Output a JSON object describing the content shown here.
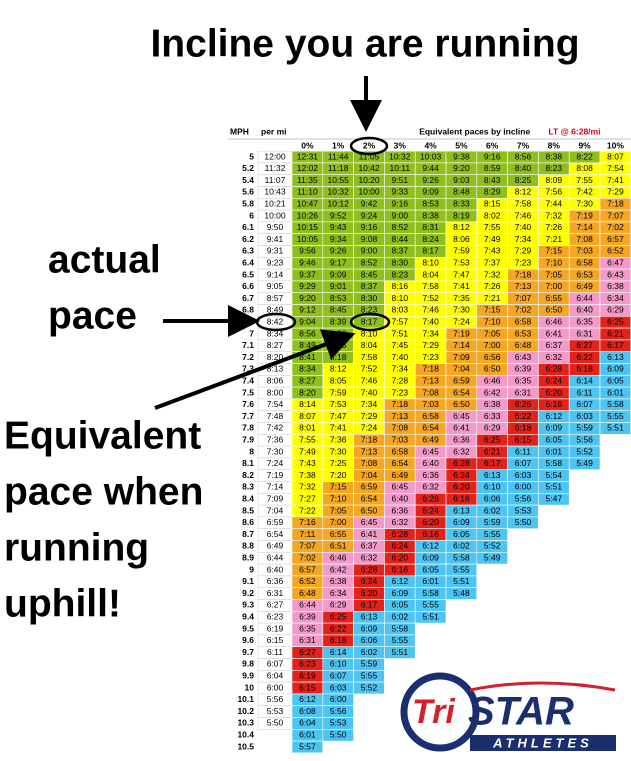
{
  "annotations": {
    "incline": "Incline you are running",
    "actual_pace": [
      "actual",
      "pace"
    ],
    "equivalent": [
      "Equivalent",
      "pace when",
      "running",
      "uphill!"
    ]
  },
  "table": {
    "headers": {
      "mph": "MPH",
      "per_mi": "per mi",
      "caption": "Equivalent paces by incline",
      "lt": "LT @ 6:28/mi",
      "inclines": [
        "0%",
        "1%",
        "2%",
        "3%",
        "4%",
        "5%",
        "6%",
        "7%",
        "8%",
        "9%",
        "10%"
      ]
    },
    "pace_colors": [
      {
        "min_seconds": 497,
        "color": "#8fbf1c"
      },
      {
        "min_seconds": 440,
        "color": "#ffff00"
      },
      {
        "min_seconds": 408,
        "color": "#f5a623"
      },
      {
        "min_seconds": 389,
        "color": "#f49ac8"
      },
      {
        "min_seconds": 375,
        "color": "#e3221c"
      },
      {
        "min_seconds": 0,
        "color": "#4dc4f2"
      }
    ],
    "rows": [
      {
        "mph": "5",
        "per_mi": "12:00",
        "paces": [
          "12:31",
          "11:44",
          "11:05",
          "10:32",
          "10:03",
          "9:38",
          "9:16",
          "8:56",
          "8:38",
          "8:22",
          "8:07"
        ]
      },
      {
        "mph": "5.2",
        "per_mi": "11:32",
        "paces": [
          "12:02",
          "11:18",
          "10:42",
          "10:11",
          "9:44",
          "9:20",
          "8:59",
          "8:40",
          "8:23",
          "8:08",
          "7:54"
        ]
      },
      {
        "mph": "5.4",
        "per_mi": "11:07",
        "paces": [
          "11:35",
          "10:55",
          "10:20",
          "9:51",
          "9:26",
          "9:03",
          "8:43",
          "8:25",
          "8:09",
          "7:55",
          "7:41"
        ]
      },
      {
        "mph": "5.6",
        "per_mi": "10:43",
        "paces": [
          "11:10",
          "10:32",
          "10:00",
          "9:33",
          "9:09",
          "8:48",
          "8:29",
          "8:12",
          "7:56",
          "7:42",
          "7:29"
        ]
      },
      {
        "mph": "5.8",
        "per_mi": "10:21",
        "paces": [
          "10:47",
          "10:12",
          "9:42",
          "9:16",
          "8:53",
          "8:33",
          "8:15",
          "7:58",
          "7:44",
          "7:30",
          "7:18"
        ]
      },
      {
        "mph": "6",
        "per_mi": "10:00",
        "paces": [
          "10:26",
          "9:52",
          "9:24",
          "9:00",
          "8:38",
          "8:19",
          "8:02",
          "7:46",
          "7:32",
          "7:19",
          "7:07"
        ]
      },
      {
        "mph": "6.1",
        "per_mi": "9:50",
        "paces": [
          "10:15",
          "9:43",
          "9:16",
          "8:52",
          "8:31",
          "8:12",
          "7:55",
          "7:40",
          "7:26",
          "7:14",
          "7:02"
        ]
      },
      {
        "mph": "6.2",
        "per_mi": "9:41",
        "paces": [
          "10:05",
          "9:34",
          "9:08",
          "8:44",
          "8:24",
          "8:06",
          "7:49",
          "7:34",
          "7:21",
          "7:08",
          "6:57"
        ]
      },
      {
        "mph": "6.3",
        "per_mi": "9:31",
        "paces": [
          "9:56",
          "9:26",
          "9:00",
          "8:37",
          "8:17",
          "7:59",
          "7:43",
          "7:29",
          "7:15",
          "7:03",
          "6:52"
        ]
      },
      {
        "mph": "6.4",
        "per_mi": "9:23",
        "paces": [
          "9:46",
          "9:17",
          "8:52",
          "8:30",
          "8:10",
          "7:53",
          "7:37",
          "7:23",
          "7:10",
          "6:58",
          "6:47"
        ]
      },
      {
        "mph": "6.5",
        "per_mi": "9:14",
        "paces": [
          "9:37",
          "9:09",
          "8:45",
          "8:23",
          "8:04",
          "7:47",
          "7:32",
          "7:18",
          "7:05",
          "6:53",
          "6:43"
        ]
      },
      {
        "mph": "6.6",
        "per_mi": "9:05",
        "paces": [
          "9:29",
          "9:01",
          "8:37",
          "8:16",
          "7:58",
          "7:41",
          "7:26",
          "7:13",
          "7:00",
          "6:49",
          "6:38"
        ]
      },
      {
        "mph": "6.7",
        "per_mi": "8:57",
        "paces": [
          "9:20",
          "8:53",
          "8:30",
          "8:10",
          "7:52",
          "7:35",
          "7:21",
          "7:07",
          "6:55",
          "6:44",
          "6:34"
        ]
      },
      {
        "mph": "6.8",
        "per_mi": "8:49",
        "paces": [
          "9:12",
          "8:45",
          "8:23",
          "8:03",
          "7:46",
          "7:30",
          "7:15",
          "7:02",
          "6:50",
          "6:40",
          "6:29"
        ]
      },
      {
        "mph": "6.9",
        "per_mi": "8:42",
        "paces": [
          "9:04",
          "8:39",
          "8:17",
          "7:57",
          "7:40",
          "7:24",
          "7:10",
          "6:58",
          "6:46",
          "6:35",
          "6:25"
        ]
      },
      {
        "mph": "7",
        "per_mi": "8:34",
        "paces": [
          "8:56",
          "8:32",
          "8:10",
          "7:51",
          "7:34",
          "7:19",
          "7:05",
          "6:53",
          "6:41",
          "6:31",
          "6:21"
        ]
      },
      {
        "mph": "7.1",
        "per_mi": "8:27",
        "paces": [
          "8:49",
          "8:25",
          "8:04",
          "7:45",
          "7:29",
          "7:14",
          "7:00",
          "6:48",
          "6:37",
          "6:27",
          "6:17"
        ]
      },
      {
        "mph": "7.2",
        "per_mi": "8:20",
        "paces": [
          "8:41",
          "8:18",
          "7:58",
          "7:40",
          "7:23",
          "7:09",
          "6:56",
          "6:43",
          "6:32",
          "6:22",
          "6:13"
        ]
      },
      {
        "mph": "7.3",
        "per_mi": "8:13",
        "paces": [
          "8:34",
          "8:12",
          "7:52",
          "7:34",
          "7:18",
          "7:04",
          "6:50",
          "6:39",
          "6:28",
          "6:18",
          "6:09"
        ]
      },
      {
        "mph": "7.4",
        "per_mi": "8:06",
        "paces": [
          "8:27",
          "8:05",
          "7:46",
          "7:28",
          "7:13",
          "6:59",
          "6:46",
          "6:35",
          "6:24",
          "6:14",
          "6:05"
        ]
      },
      {
        "mph": "7.5",
        "per_mi": "8:00",
        "paces": [
          "8:20",
          "7:59",
          "7:40",
          "7:23",
          "7:08",
          "6:54",
          "6:42",
          "6:31",
          "6:20",
          "6:11",
          "6:01"
        ]
      },
      {
        "mph": "7.6",
        "per_mi": "7:54",
        "paces": [
          "8:14",
          "7:53",
          "7:34",
          "7:18",
          "7:03",
          "6:50",
          "6:38",
          "6:26",
          "6:16",
          "6:07",
          "5:58"
        ]
      },
      {
        "mph": "7.7",
        "per_mi": "7:48",
        "paces": [
          "8:07",
          "7:47",
          "7:29",
          "7:13",
          "6:58",
          "6:45",
          "6:33",
          "6:22",
          "6:12",
          "6:03",
          "5:55"
        ]
      },
      {
        "mph": "7.8",
        "per_mi": "7:42",
        "paces": [
          "8:01",
          "7:41",
          "7:24",
          "7:08",
          "6:54",
          "6:41",
          "6:29",
          "6:18",
          "6:09",
          "5:59",
          "5:51"
        ]
      },
      {
        "mph": "7.9",
        "per_mi": "7:36",
        "paces": [
          "7:55",
          "7:36",
          "7:18",
          "7:03",
          "6:49",
          "6:36",
          "6:25",
          "6:15",
          "6:05",
          "5:56"
        ]
      },
      {
        "mph": "8",
        "per_mi": "7:30",
        "paces": [
          "7:49",
          "7:30",
          "7:13",
          "6:58",
          "6:45",
          "6:32",
          "6:21",
          "6:11",
          "6:01",
          "5:52"
        ]
      },
      {
        "mph": "8.1",
        "per_mi": "7:24",
        "paces": [
          "7:43",
          "7:25",
          "7:08",
          "6:54",
          "6:40",
          "6:28",
          "6:17",
          "6:07",
          "5:58",
          "5:49"
        ]
      },
      {
        "mph": "8.2",
        "per_mi": "7:19",
        "paces": [
          "7:38",
          "7:20",
          "7:04",
          "6:49",
          "6:36",
          "6:24",
          "6:13",
          "6:03",
          "5:54"
        ]
      },
      {
        "mph": "8.3",
        "per_mi": "7:14",
        "paces": [
          "7:32",
          "7:15",
          "6:59",
          "6:45",
          "6:32",
          "6:20",
          "6:10",
          "6:00",
          "5:51"
        ]
      },
      {
        "mph": "8.4",
        "per_mi": "7:09",
        "paces": [
          "7:27",
          "7:10",
          "6:54",
          "6:40",
          "6:28",
          "6:16",
          "6:06",
          "5:56",
          "5:47"
        ]
      },
      {
        "mph": "8.5",
        "per_mi": "7:04",
        "paces": [
          "7:22",
          "7:05",
          "6:50",
          "6:36",
          "6:24",
          "6:13",
          "6:02",
          "5:53"
        ]
      },
      {
        "mph": "8.6",
        "per_mi": "6:59",
        "paces": [
          "7:16",
          "7:00",
          "6:45",
          "6:32",
          "6:20",
          "6:09",
          "5:59",
          "5:50"
        ]
      },
      {
        "mph": "8.7",
        "per_mi": "6:54",
        "paces": [
          "7:11",
          "6:55",
          "6:41",
          "6:28",
          "6:16",
          "6:05",
          "5:55"
        ]
      },
      {
        "mph": "8.8",
        "per_mi": "6:49",
        "paces": [
          "7:07",
          "6:51",
          "6:37",
          "6:24",
          "6:12",
          "6:02",
          "5:52"
        ]
      },
      {
        "mph": "8.9",
        "per_mi": "6:44",
        "paces": [
          "7:02",
          "6:46",
          "6:32",
          "6:20",
          "6:09",
          "5:58",
          "5:49"
        ]
      },
      {
        "mph": "9",
        "per_mi": "6:40",
        "paces": [
          "6:57",
          "6:42",
          "6:28",
          "6:16",
          "6:05",
          "5:55"
        ]
      },
      {
        "mph": "9.1",
        "per_mi": "6:36",
        "paces": [
          "6:52",
          "6:38",
          "6:24",
          "6:12",
          "6:01",
          "5:51"
        ]
      },
      {
        "mph": "9.2",
        "per_mi": "6:31",
        "paces": [
          "6:48",
          "6:34",
          "6:20",
          "6:09",
          "5:58",
          "5:48"
        ]
      },
      {
        "mph": "9.3",
        "per_mi": "6:27",
        "paces": [
          "6:44",
          "6:29",
          "6:17",
          "6:05",
          "5:55"
        ]
      },
      {
        "mph": "9.4",
        "per_mi": "6:23",
        "paces": [
          "6:39",
          "6:25",
          "6:13",
          "6:02",
          "5:51"
        ]
      },
      {
        "mph": "9.5",
        "per_mi": "6:19",
        "paces": [
          "6:35",
          "6:22",
          "6:09",
          "5:58"
        ]
      },
      {
        "mph": "9.6",
        "per_mi": "6:15",
        "paces": [
          "6:31",
          "6:18",
          "6:06",
          "5:55"
        ]
      },
      {
        "mph": "9.7",
        "per_mi": "6:11",
        "paces": [
          "6:27",
          "6:14",
          "6:02",
          "5:51"
        ]
      },
      {
        "mph": "9.8",
        "per_mi": "6:07",
        "paces": [
          "6:23",
          "6:10",
          "5:59"
        ]
      },
      {
        "mph": "9.9",
        "per_mi": "6:04",
        "paces": [
          "6:19",
          "6:07",
          "5:55"
        ]
      },
      {
        "mph": "10",
        "per_mi": "6:00",
        "paces": [
          "6:15",
          "6:03",
          "5:52"
        ]
      },
      {
        "mph": "10.1",
        "per_mi": "5:56",
        "paces": [
          "6:12",
          "6:00"
        ]
      },
      {
        "mph": "10.2",
        "per_mi": "5:53",
        "paces": [
          "6:08",
          "5:56"
        ]
      },
      {
        "mph": "10.3",
        "per_mi": "5:50",
        "paces": [
          "6:04",
          "5:53"
        ]
      },
      {
        "mph": "10.4",
        "per_mi": null,
        "paces": [
          "6:01",
          "5:50"
        ]
      },
      {
        "mph": "10.5",
        "per_mi": null,
        "paces": [
          "5:57"
        ]
      }
    ]
  },
  "logo": {
    "tri": "Tri",
    "star": "STAR",
    "athletes": "ATHLETES"
  }
}
